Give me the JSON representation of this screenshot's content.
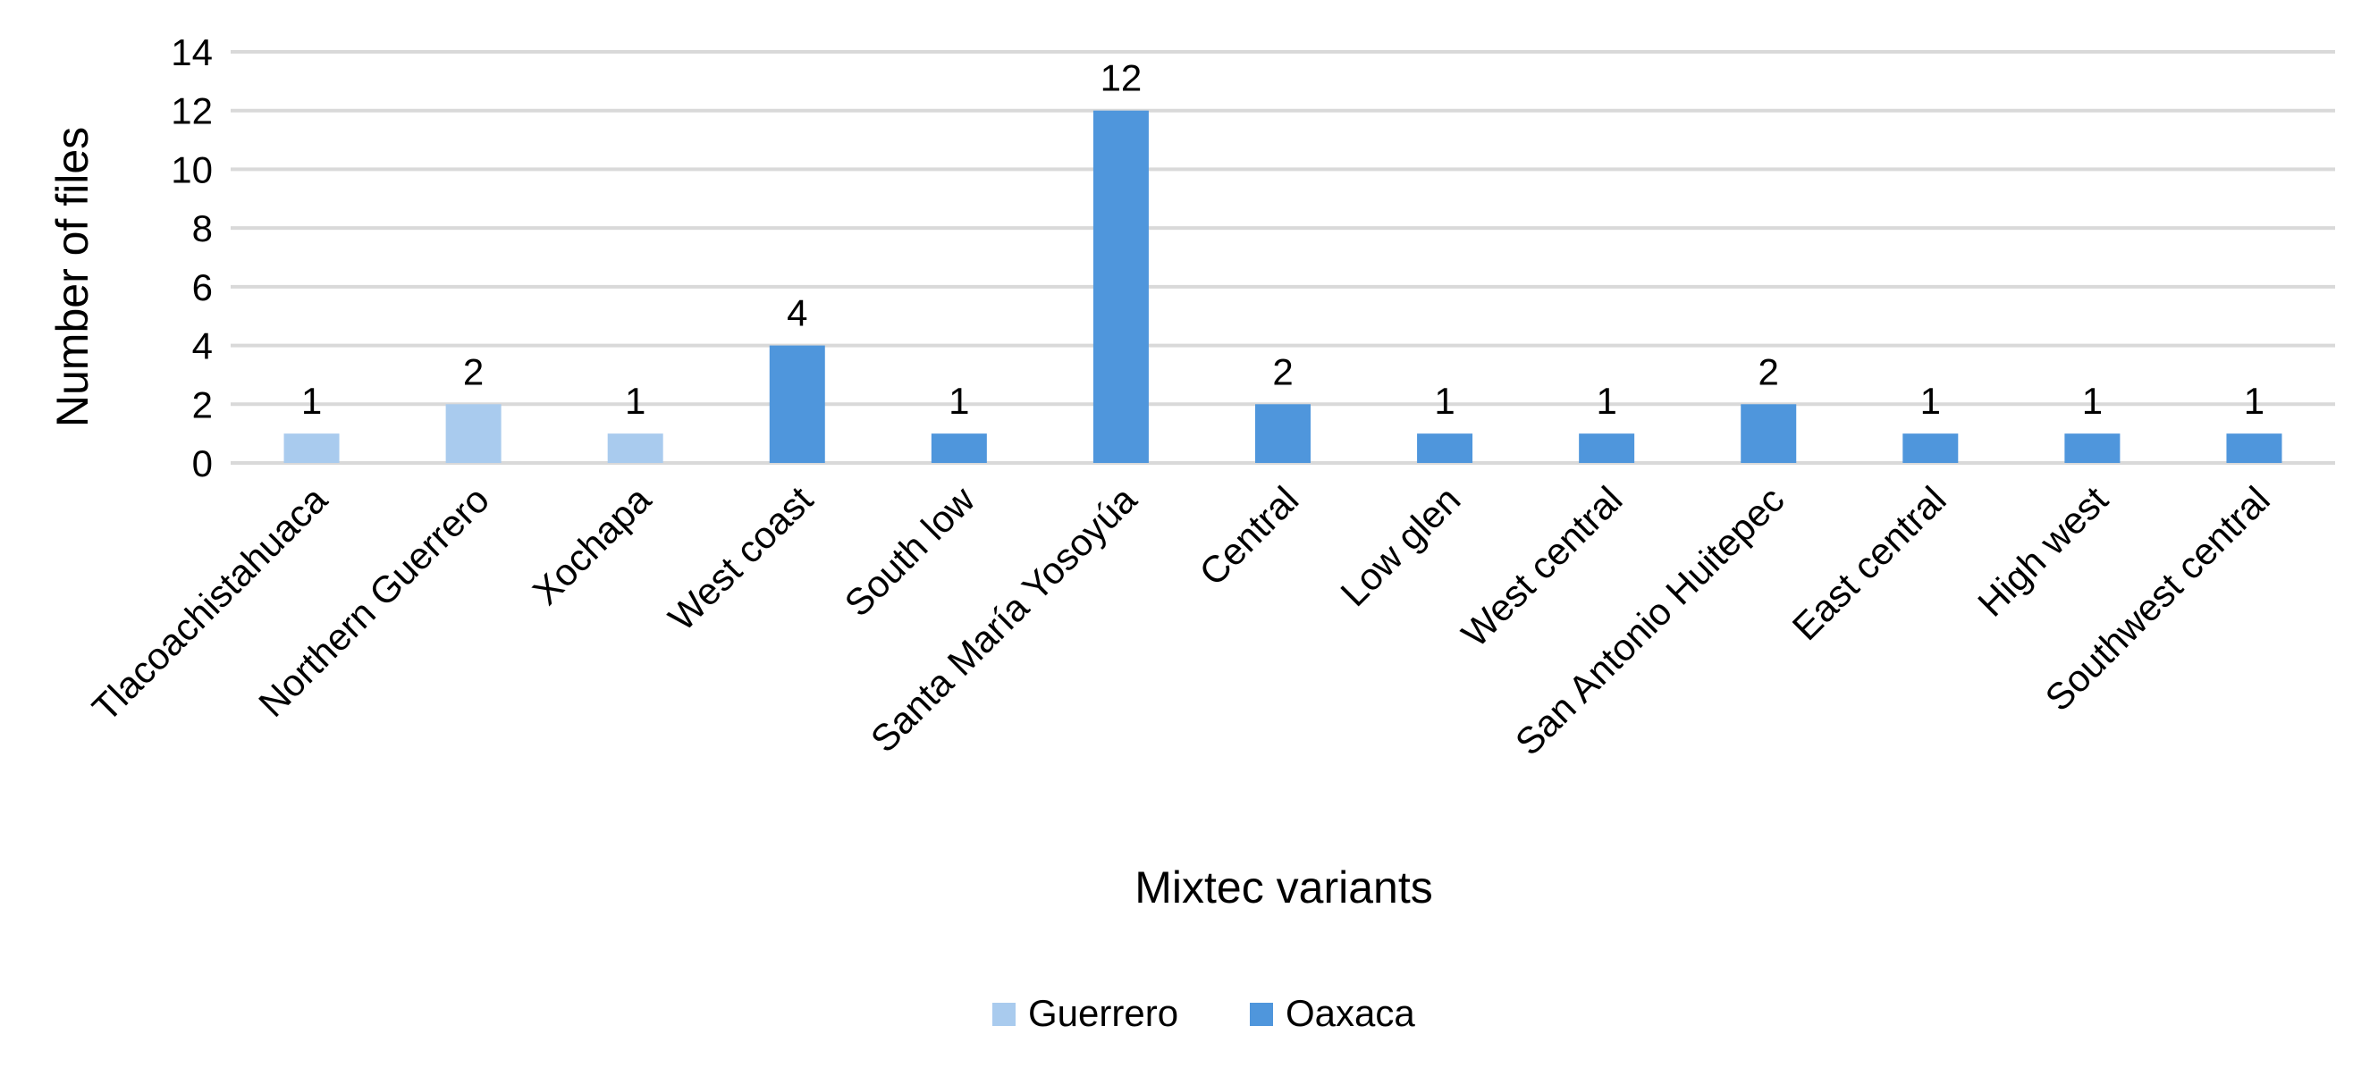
{
  "chart_data": {
    "type": "bar",
    "title": "",
    "xlabel": "Mixtec variants",
    "ylabel": "Number of files",
    "ylim": [
      0,
      14
    ],
    "yticks": [
      0,
      2,
      4,
      6,
      8,
      10,
      12,
      14
    ],
    "grid": true,
    "legend_position": "bottom",
    "categories": [
      "Tlacoachistahuaca",
      "Northern Guerrero",
      "Xochapa",
      "West coast",
      "South low",
      "Santa María Yosoyúa",
      "Central",
      "Low glen",
      "West central",
      "San Antonio Huitepec",
      "East central",
      "High west",
      "Southwest central"
    ],
    "values": [
      1,
      2,
      1,
      4,
      1,
      12,
      2,
      1,
      1,
      2,
      1,
      1,
      1
    ],
    "group": [
      "Guerrero",
      "Guerrero",
      "Guerrero",
      "Oaxaca",
      "Oaxaca",
      "Oaxaca",
      "Oaxaca",
      "Oaxaca",
      "Oaxaca",
      "Oaxaca",
      "Oaxaca",
      "Oaxaca",
      "Oaxaca"
    ],
    "series": [
      {
        "name": "Guerrero",
        "color": "#a9cbee"
      },
      {
        "name": "Oaxaca",
        "color": "#4f96dc"
      }
    ]
  }
}
